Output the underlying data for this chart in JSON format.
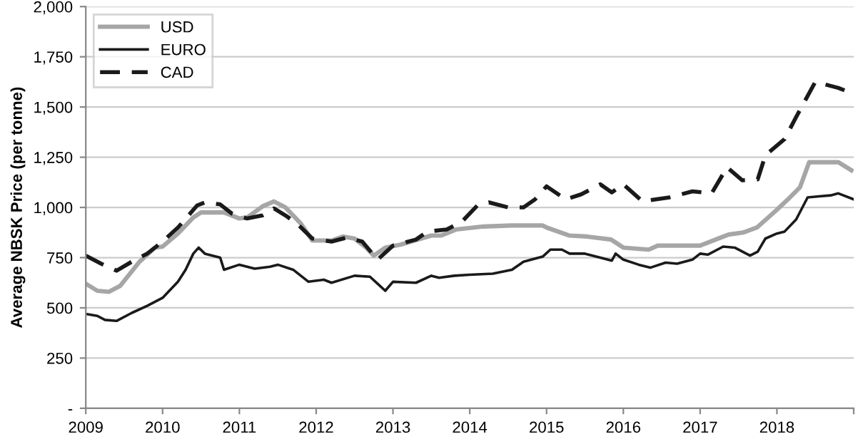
{
  "chart_data": {
    "type": "line",
    "ylabel": "Average NBSK Price (per tonne)",
    "xlim": [
      2009,
      2019
    ],
    "xticks": [
      2009,
      2010,
      2011,
      2012,
      2013,
      2014,
      2015,
      2016,
      2017,
      2018,
      {
        "value": 2019,
        "label": null
      }
    ],
    "ylim": [
      0,
      2000
    ],
    "yticks": [
      {
        "value": 0,
        "label": "-"
      },
      250,
      500,
      750,
      {
        "value": 1000,
        "label": "1,000"
      },
      {
        "value": 1250,
        "label": "1,250"
      },
      {
        "value": 1500,
        "label": "1,500"
      },
      {
        "value": 1750,
        "label": "1,750"
      },
      {
        "value": 2000,
        "label": "2,000"
      }
    ],
    "grid": "y",
    "legend": "top left",
    "series": [
      {
        "name": "USD",
        "color": "#a6a6a6",
        "line_style": "solid",
        "x": [
          2009.0,
          2009.15,
          2009.3,
          2009.45,
          2009.7,
          2009.9,
          2010.0,
          2010.2,
          2010.4,
          2010.5,
          2010.8,
          2011.0,
          2011.1,
          2011.3,
          2011.45,
          2011.6,
          2011.8,
          2011.95,
          2012.2,
          2012.35,
          2012.5,
          2012.65,
          2012.75,
          2012.9,
          2013.1,
          2013.5,
          2013.63,
          2013.82,
          2014.18,
          2014.55,
          2014.95,
          2015.0,
          2015.3,
          2015.53,
          2015.84,
          2016.0,
          2016.33,
          2016.45,
          2017.0,
          2017.37,
          2017.56,
          2017.74,
          2017.99,
          2018.17,
          2018.3,
          2018.42,
          2018.8,
          2018.97
        ],
        "values": [
          620,
          585,
          580,
          610,
          730,
          800,
          805,
          870,
          950,
          975,
          975,
          945,
          950,
          1005,
          1030,
          1000,
          920,
          835,
          835,
          855,
          845,
          800,
          760,
          800,
          815,
          860,
          860,
          890,
          905,
          910,
          910,
          900,
          860,
          855,
          840,
          800,
          790,
          810,
          810,
          865,
          875,
          900,
          985,
          1050,
          1100,
          1225,
          1225,
          1185
        ]
      },
      {
        "name": "EURO",
        "color": "#1a1a1a",
        "line_style": "solid",
        "x": [
          2009.0,
          2009.15,
          2009.25,
          2009.4,
          2009.6,
          2009.8,
          2010.0,
          2010.2,
          2010.3,
          2010.4,
          2010.47,
          2010.55,
          2010.75,
          2010.8,
          2011.0,
          2011.2,
          2011.4,
          2011.5,
          2011.7,
          2011.9,
          2012.1,
          2012.2,
          2012.5,
          2012.7,
          2012.8,
          2012.9,
          2013.0,
          2013.3,
          2013.5,
          2013.6,
          2013.8,
          2014.0,
          2014.3,
          2014.55,
          2014.7,
          2014.95,
          2015.05,
          2015.2,
          2015.3,
          2015.5,
          2015.7,
          2015.85,
          2015.9,
          2016.0,
          2016.2,
          2016.35,
          2016.55,
          2016.7,
          2016.9,
          2017.0,
          2017.1,
          2017.3,
          2017.45,
          2017.65,
          2017.75,
          2017.85,
          2018.0,
          2018.1,
          2018.25,
          2018.4,
          2018.55,
          2018.7,
          2018.8,
          2019.0
        ],
        "values": [
          470,
          460,
          440,
          435,
          475,
          510,
          550,
          630,
          690,
          770,
          800,
          770,
          750,
          690,
          715,
          695,
          705,
          715,
          690,
          630,
          640,
          625,
          660,
          655,
          620,
          585,
          630,
          625,
          660,
          650,
          660,
          665,
          670,
          690,
          730,
          755,
          790,
          790,
          770,
          770,
          750,
          735,
          770,
          740,
          715,
          700,
          725,
          720,
          740,
          770,
          765,
          805,
          800,
          760,
          780,
          845,
          870,
          880,
          940,
          1050,
          1055,
          1060,
          1070,
          1040
        ]
      },
      {
        "name": "CAD",
        "color": "#1a1a1a",
        "line_style": "dashed",
        "x": [
          2009.0,
          2009.2,
          2009.4,
          2009.6,
          2009.8,
          2010.0,
          2010.2,
          2010.45,
          2010.55,
          2010.75,
          2010.9,
          2011.1,
          2011.3,
          2011.45,
          2011.6,
          2011.75,
          2011.95,
          2012.2,
          2012.4,
          2012.6,
          2012.8,
          2013.0,
          2013.3,
          2013.45,
          2013.7,
          2013.9,
          2014.1,
          2014.25,
          2014.5,
          2014.7,
          2014.85,
          2015.0,
          2015.25,
          2015.45,
          2015.7,
          2015.85,
          2016.0,
          2016.25,
          2016.6,
          2016.9,
          2017.15,
          2017.35,
          2017.55,
          2017.75,
          2017.85,
          2018.1,
          2018.25,
          2018.5,
          2018.8,
          2018.9,
          2019.0
        ],
        "values": [
          760,
          720,
          685,
          730,
          770,
          830,
          900,
          1010,
          1025,
          1015,
          970,
          945,
          960,
          995,
          960,
          920,
          845,
          830,
          850,
          830,
          740,
          810,
          840,
          880,
          890,
          930,
          1010,
          1025,
          1000,
          1000,
          1040,
          1105,
          1040,
          1065,
          1115,
          1075,
          1115,
          1030,
          1050,
          1080,
          1070,
          1200,
          1135,
          1140,
          1260,
          1340,
          1450,
          1625,
          1595,
          1580,
          1595
        ]
      }
    ]
  }
}
